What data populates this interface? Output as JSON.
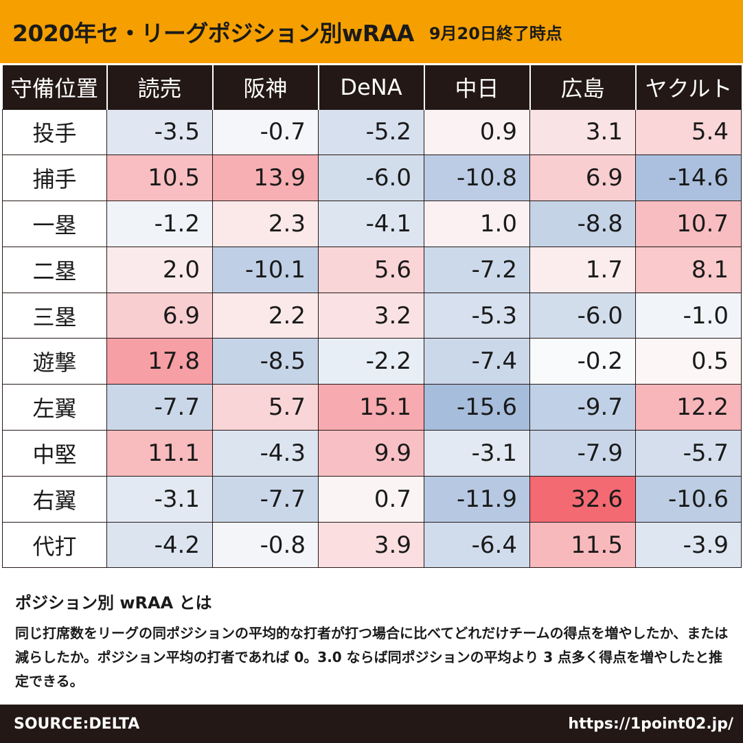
{
  "header": {
    "title": "2020年セ・リーグポジション別wRAA",
    "subtitle": "9月20日終了時点"
  },
  "chart_data": {
    "type": "heatmap",
    "corner_label": "守備位置",
    "columns": [
      "読売",
      "阪神",
      "DeNA",
      "中日",
      "広島",
      "ヤクルト"
    ],
    "rows": [
      "投手",
      "捕手",
      "一塁",
      "二塁",
      "三塁",
      "遊撃",
      "左翼",
      "中堅",
      "右翼",
      "代打"
    ],
    "values": [
      [
        -3.5,
        -0.7,
        -5.2,
        0.9,
        3.1,
        5.4
      ],
      [
        10.5,
        13.9,
        -6.0,
        -10.8,
        6.9,
        -14.6
      ],
      [
        -1.2,
        2.3,
        -4.1,
        1.0,
        -8.8,
        10.7
      ],
      [
        2.0,
        -10.1,
        5.6,
        -7.2,
        1.7,
        8.1
      ],
      [
        6.9,
        2.2,
        3.2,
        -5.3,
        -6.0,
        -1.0
      ],
      [
        17.8,
        -8.5,
        -2.2,
        -7.4,
        -0.2,
        0.5
      ],
      [
        -7.7,
        5.7,
        15.1,
        -15.6,
        -9.7,
        12.2
      ],
      [
        11.1,
        -4.3,
        9.9,
        -3.1,
        -7.9,
        -5.7
      ],
      [
        -3.1,
        -7.7,
        0.7,
        -11.9,
        32.6,
        -10.6
      ],
      [
        -4.2,
        -0.8,
        3.9,
        -6.4,
        11.5,
        -3.9
      ]
    ],
    "color_positive": "#f36a72",
    "color_negative": "#a7bddc"
  },
  "notes": {
    "title": "ポジション別 wRAA とは",
    "body": "同じ打席数をリーグの同ポジションの平均的な打者が打つ場合に比べてどれだけチームの得点を増やしたか、または減らしたか。ポジション平均の打者であれば 0。3.0 ならば同ポジションの平均より 3 点多く得点を増やしたと推定できる。"
  },
  "footer": {
    "source": "SOURCE:DELTA",
    "url": "https://1point02.jp/"
  }
}
